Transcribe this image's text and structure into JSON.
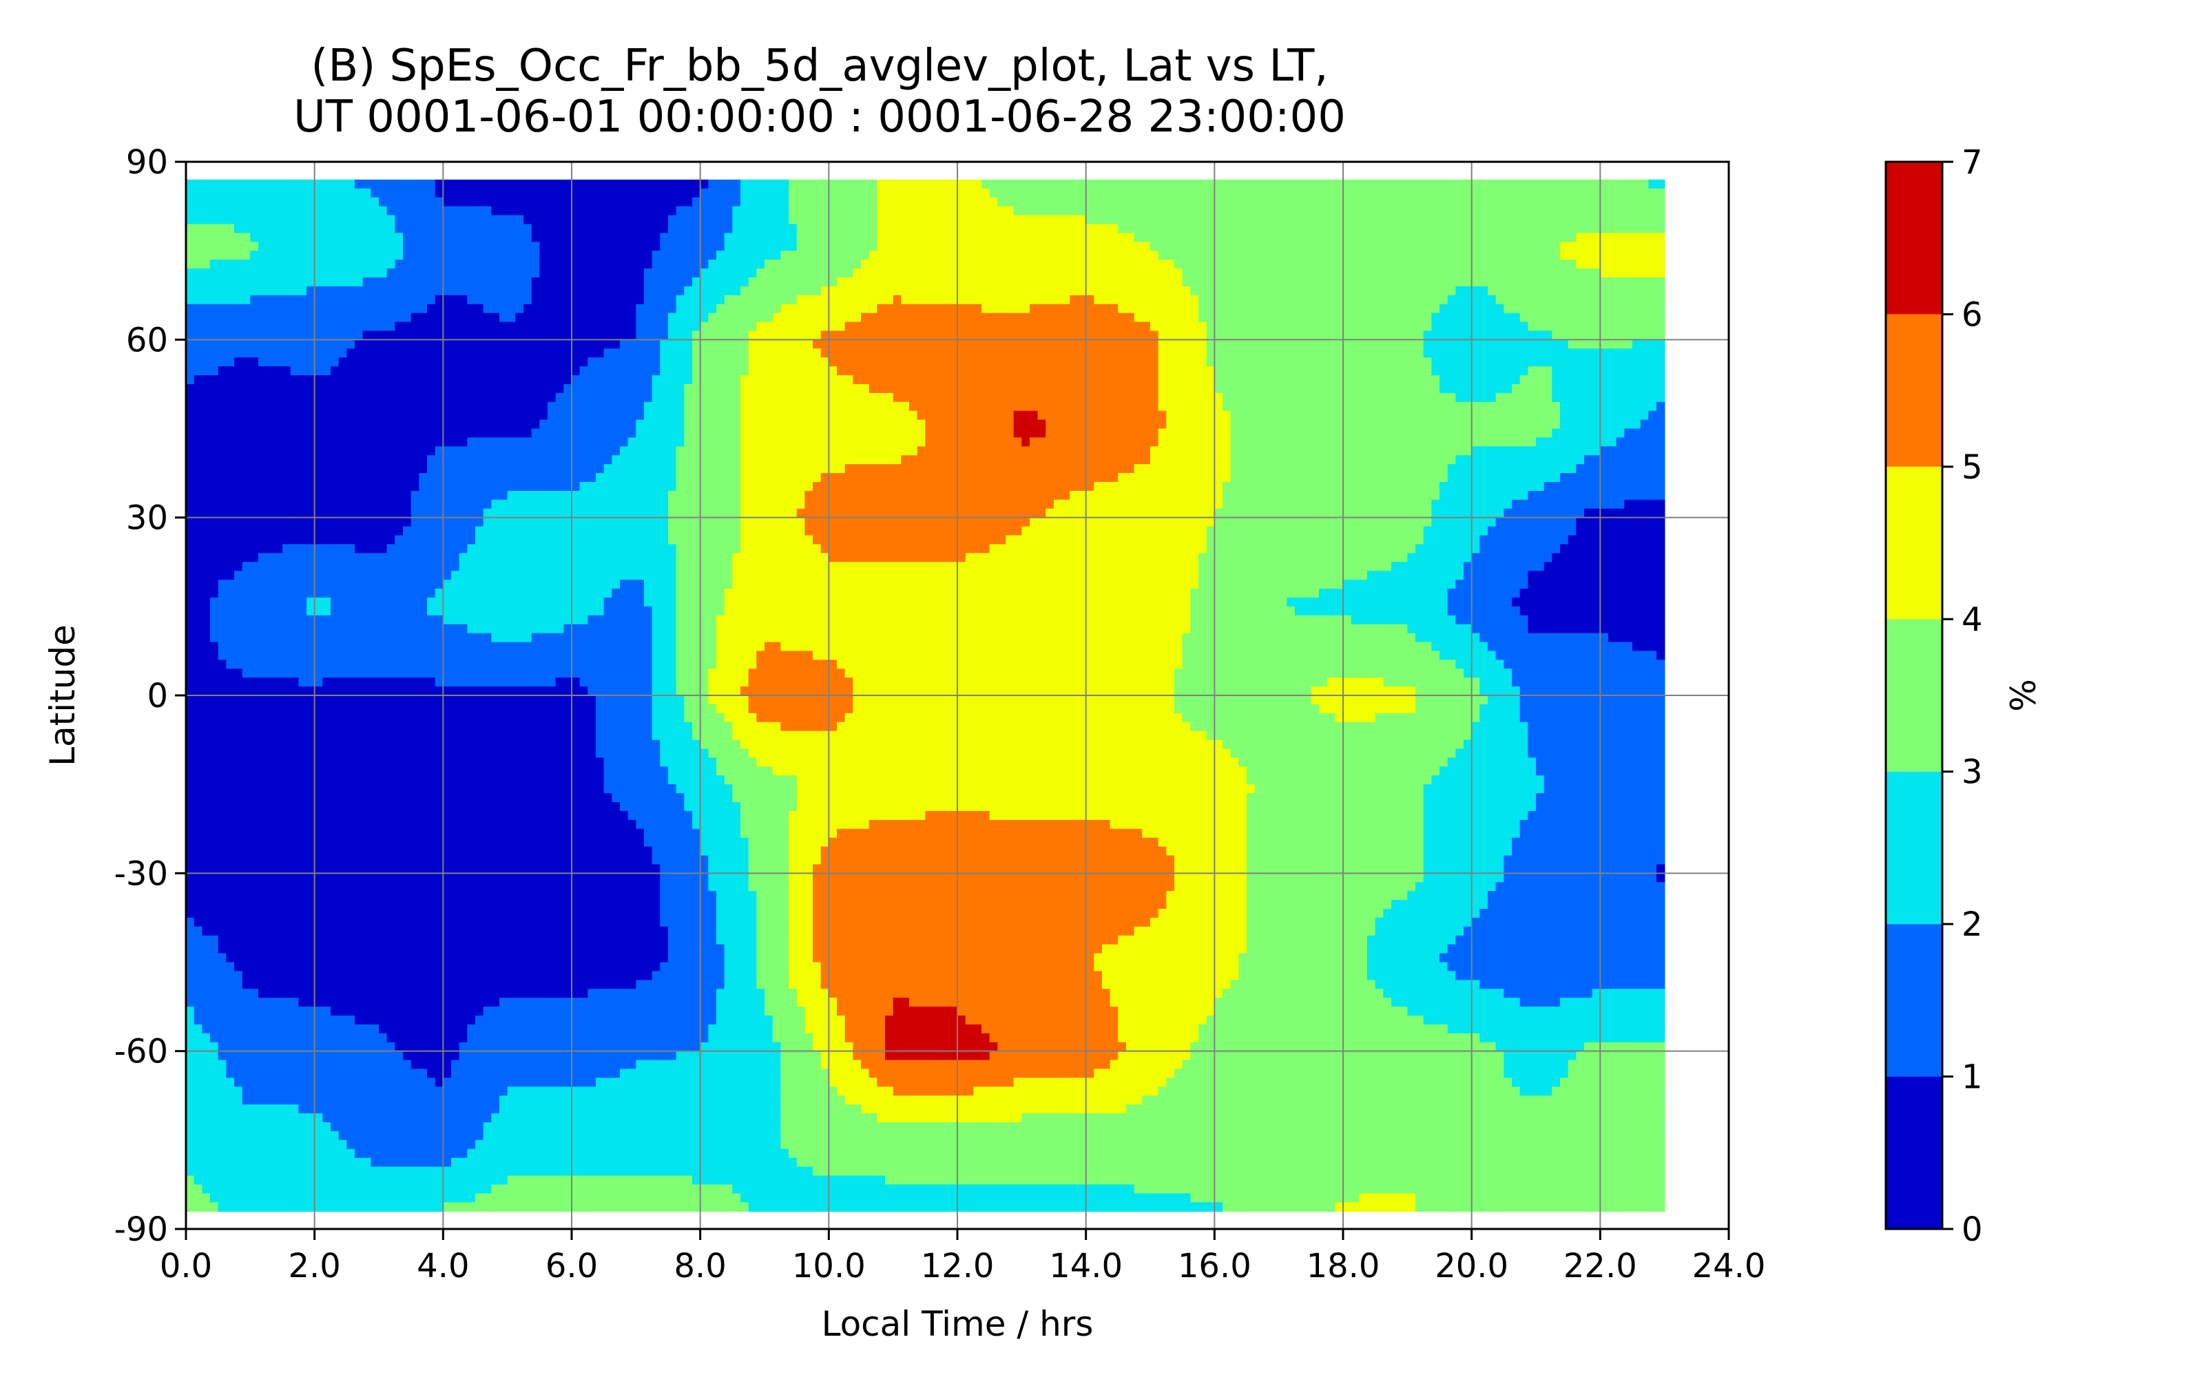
{
  "chart_data": {
    "type": "contourf",
    "title_line1": "(B) SpEs_Occ_Fr_bb_5d_avglev_plot, Lat vs LT,",
    "title_line2": "UT 0001-06-01 00:00:00 : 0001-06-28 23:00:00",
    "xlabel": "Local Time / hrs",
    "ylabel": "Latitude",
    "xlim": [
      0,
      24
    ],
    "ylim": [
      -90,
      90
    ],
    "x_ticks": [
      "0.0",
      "2.0",
      "4.0",
      "6.0",
      "8.0",
      "10.0",
      "12.0",
      "14.0",
      "16.0",
      "18.0",
      "20.0",
      "22.0",
      "24.0"
    ],
    "y_ticks": [
      "90",
      "60",
      "30",
      "0",
      "-30",
      "-60",
      "-90"
    ],
    "grid": true,
    "colorbar": {
      "label": "%",
      "levels": [
        0,
        1,
        2,
        3,
        4,
        5,
        6,
        7
      ],
      "tick_labels": [
        "0",
        "1",
        "2",
        "3",
        "4",
        "5",
        "6",
        "7"
      ],
      "colors": [
        "#0000cc",
        "#0066ff",
        "#00e5ee",
        "#80ff72",
        "#f2ff00",
        "#ff7700",
        "#d00000"
      ]
    },
    "lt_values": [
      0,
      1,
      2,
      3,
      4,
      5,
      6,
      7,
      8,
      9,
      10,
      11,
      12,
      13,
      14,
      15,
      16,
      17,
      18,
      19,
      20,
      21,
      22,
      23
    ],
    "lat_values": [
      87,
      75,
      60,
      45,
      30,
      15,
      0,
      -15,
      -30,
      -45,
      -60,
      -75,
      -87
    ],
    "z": [
      [
        2.3,
        2.6,
        2.3,
        1.8,
        0.8,
        0.6,
        0.7,
        0.7,
        0.8,
        2.6,
        3.6,
        4.1,
        4.1,
        3.8,
        3.5,
        3.7,
        3.6,
        3.6,
        3.4,
        3.4,
        3.4,
        3.5,
        3.3,
        2.8
      ],
      [
        3.5,
        3.1,
        2.5,
        2.6,
        1.3,
        1.5,
        0.5,
        0.7,
        1.6,
        2.8,
        3.2,
        4.3,
        4.3,
        4.2,
        4.4,
        4.0,
        3.6,
        3.5,
        3.6,
        3.4,
        3.3,
        3.9,
        4.3,
        4.4
      ],
      [
        1.2,
        1.1,
        1.3,
        0.8,
        0.6,
        0.9,
        0.8,
        1.0,
        3.3,
        4.3,
        5.2,
        5.6,
        5.4,
        5.4,
        5.6,
        5.2,
        3.8,
        3.3,
        3.0,
        3.2,
        2.4,
        2.9,
        3.1,
        3.0
      ],
      [
        0.8,
        0.6,
        0.6,
        0.8,
        0.9,
        0.8,
        1.2,
        2.0,
        3.4,
        4.3,
        4.5,
        4.7,
        5.2,
        6.2,
        5.8,
        5.2,
        4.2,
        3.5,
        3.3,
        3.2,
        3.2,
        3.3,
        2.4,
        1.6
      ],
      [
        0.6,
        0.6,
        0.5,
        0.6,
        1.4,
        2.4,
        2.3,
        2.7,
        3.4,
        4.3,
        5.6,
        5.4,
        5.4,
        5.1,
        4.6,
        4.6,
        4.0,
        3.7,
        3.6,
        3.4,
        2.4,
        1.4,
        0.8,
        0.8
      ],
      [
        0.8,
        1.4,
        2.2,
        1.6,
        2.2,
        2.8,
        2.4,
        1.6,
        3.7,
        4.5,
        4.3,
        4.6,
        4.6,
        4.4,
        4.3,
        4.5,
        3.7,
        3.0,
        2.8,
        2.6,
        1.5,
        0.7,
        0.8,
        0.7
      ],
      [
        0.9,
        0.9,
        0.8,
        0.8,
        0.8,
        0.8,
        0.7,
        1.6,
        3.7,
        5.7,
        5.5,
        4.3,
        4.3,
        4.3,
        4.2,
        4.2,
        3.6,
        3.8,
        4.3,
        4.2,
        3.4,
        1.6,
        1.4,
        1.2
      ],
      [
        0.6,
        0.6,
        0.6,
        0.5,
        0.6,
        0.6,
        0.6,
        1.4,
        2.4,
        3.6,
        4.3,
        4.5,
        4.6,
        4.5,
        4.6,
        4.3,
        4.4,
        3.7,
        3.3,
        3.2,
        2.4,
        2.1,
        1.6,
        1.6
      ],
      [
        0.6,
        0.6,
        0.5,
        0.5,
        0.5,
        0.5,
        0.5,
        0.5,
        1.8,
        3.3,
        5.5,
        5.8,
        5.9,
        5.8,
        5.7,
        5.5,
        4.4,
        3.6,
        3.2,
        3.2,
        2.4,
        1.6,
        1.6,
        0.9
      ],
      [
        1.4,
        0.8,
        0.8,
        0.7,
        0.6,
        0.6,
        0.6,
        0.7,
        1.3,
        3.3,
        5.4,
        5.8,
        5.5,
        5.2,
        5.0,
        4.6,
        4.3,
        3.6,
        3.3,
        2.4,
        1.6,
        1.3,
        1.4,
        1.6
      ],
      [
        2.6,
        1.4,
        1.2,
        1.1,
        0.8,
        1.6,
        1.6,
        1.9,
        2.0,
        2.6,
        4.3,
        6.3,
        6.4,
        5.8,
        5.7,
        4.5,
        3.7,
        3.4,
        3.3,
        3.5,
        3.3,
        2.6,
        3.2,
        3.2
      ],
      [
        2.8,
        2.4,
        2.4,
        1.5,
        1.3,
        2.5,
        2.5,
        2.6,
        2.6,
        2.9,
        3.3,
        3.4,
        3.5,
        3.4,
        3.4,
        3.5,
        3.6,
        3.6,
        3.4,
        3.5,
        3.2,
        3.3,
        3.4,
        3.3
      ],
      [
        3.3,
        2.8,
        2.8,
        2.9,
        3.1,
        3.4,
        3.4,
        3.4,
        3.3,
        2.9,
        2.7,
        2.7,
        2.7,
        2.8,
        2.7,
        2.8,
        2.9,
        3.3,
        4.1,
        4.2,
        3.2,
        3.2,
        3.1,
        3.1
      ]
    ]
  }
}
